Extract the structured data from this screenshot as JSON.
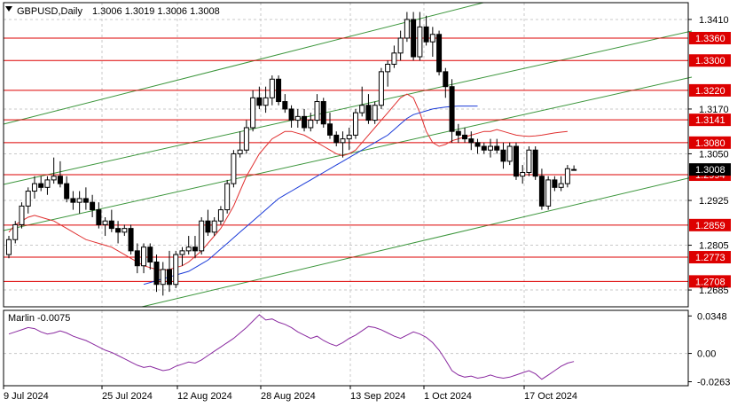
{
  "header": {
    "symbol_timeframe": "GBPUSD,Daily",
    "ohlc": "1.3006 1.3019 1.3006 1.3008"
  },
  "subwindow": {
    "indicator_label": "Marlin -0.0075"
  },
  "colors": {
    "background": "#ffffff",
    "grid": "#c8c8c8",
    "level_line": "#dd0000",
    "level_tag": "#dd0000",
    "channel": "#3c963c",
    "ma_fast": "#e03030",
    "ma_slow": "#1a3ad8",
    "marlin": "#8a2aa0",
    "candle_body_down": "#000000",
    "candle_body_up": "#ffffff",
    "current_price_tag": "#000000"
  },
  "chart_data": {
    "type": "candlestick",
    "price_axis": {
      "min": 1.264,
      "max": 1.3455,
      "tick_labels": [
        "1.3410",
        "1.3170",
        "1.3050",
        "1.2925",
        "1.2805",
        "1.2685"
      ]
    },
    "x_tick_labels": [
      "9 Jul 2024",
      "25 Jul 2024",
      "12 Aug 2024",
      "28 Aug 2024",
      "13 Sep 2024",
      "1 Oct 2024",
      "17 Oct 2024"
    ],
    "horizontal_levels": [
      "1.3360",
      "1.3300",
      "1.3220",
      "1.3141",
      "1.3080",
      "1.2994",
      "1.2859",
      "1.2773",
      "1.2708"
    ],
    "current_price": "1.3008",
    "candles": [
      [
        1.278,
        1.283,
        1.277,
        1.282
      ],
      [
        1.282,
        1.287,
        1.281,
        1.286
      ],
      [
        1.286,
        1.292,
        1.285,
        1.291
      ],
      [
        1.291,
        1.296,
        1.289,
        1.295
      ],
      [
        1.295,
        1.299,
        1.293,
        1.297
      ],
      [
        1.297,
        1.299,
        1.295,
        1.296
      ],
      [
        1.296,
        1.299,
        1.294,
        1.298
      ],
      [
        1.298,
        1.304,
        1.297,
        1.299
      ],
      [
        1.299,
        1.303,
        1.296,
        1.297
      ],
      [
        1.297,
        1.299,
        1.292,
        1.293
      ],
      [
        1.293,
        1.295,
        1.29,
        1.292
      ],
      [
        1.292,
        1.295,
        1.289,
        1.293
      ],
      [
        1.293,
        1.296,
        1.29,
        1.292
      ],
      [
        1.292,
        1.294,
        1.288,
        1.29
      ],
      [
        1.29,
        1.292,
        1.285,
        1.286
      ],
      [
        1.286,
        1.288,
        1.283,
        1.287
      ],
      [
        1.287,
        1.29,
        1.284,
        1.285
      ],
      [
        1.285,
        1.287,
        1.281,
        1.284
      ],
      [
        1.284,
        1.286,
        1.283,
        1.285
      ],
      [
        1.285,
        1.286,
        1.278,
        1.279
      ],
      [
        1.279,
        1.281,
        1.273,
        1.275
      ],
      [
        1.275,
        1.281,
        1.273,
        1.28
      ],
      [
        1.28,
        1.281,
        1.274,
        1.276
      ],
      [
        1.276,
        1.278,
        1.268,
        1.27
      ],
      [
        1.27,
        1.276,
        1.267,
        1.274
      ],
      [
        1.274,
        1.279,
        1.268,
        1.27
      ],
      [
        1.27,
        1.279,
        1.269,
        1.278
      ],
      [
        1.278,
        1.28,
        1.275,
        1.279
      ],
      [
        1.279,
        1.283,
        1.278,
        1.28
      ],
      [
        1.28,
        1.283,
        1.277,
        1.279
      ],
      [
        1.279,
        1.288,
        1.278,
        1.287
      ],
      [
        1.287,
        1.29,
        1.283,
        1.284
      ],
      [
        1.284,
        1.288,
        1.283,
        1.287
      ],
      [
        1.287,
        1.291,
        1.286,
        1.29
      ],
      [
        1.29,
        1.298,
        1.289,
        1.297
      ],
      [
        1.297,
        1.306,
        1.296,
        1.305
      ],
      [
        1.305,
        1.311,
        1.304,
        1.306
      ],
      [
        1.306,
        1.314,
        1.305,
        1.312
      ],
      [
        1.312,
        1.322,
        1.311,
        1.32
      ],
      [
        1.32,
        1.323,
        1.317,
        1.318
      ],
      [
        1.318,
        1.323,
        1.316,
        1.32
      ],
      [
        1.32,
        1.326,
        1.318,
        1.325
      ],
      [
        1.325,
        1.326,
        1.318,
        1.319
      ],
      [
        1.319,
        1.321,
        1.316,
        1.317
      ],
      [
        1.317,
        1.318,
        1.312,
        1.314
      ],
      [
        1.314,
        1.317,
        1.312,
        1.315
      ],
      [
        1.315,
        1.317,
        1.311,
        1.312
      ],
      [
        1.312,
        1.316,
        1.311,
        1.314
      ],
      [
        1.314,
        1.321,
        1.313,
        1.319
      ],
      [
        1.319,
        1.32,
        1.312,
        1.313
      ],
      [
        1.313,
        1.316,
        1.309,
        1.31
      ],
      [
        1.31,
        1.311,
        1.307,
        1.308
      ],
      [
        1.308,
        1.311,
        1.304,
        1.309
      ],
      [
        1.309,
        1.312,
        1.306,
        1.31
      ],
      [
        1.31,
        1.317,
        1.309,
        1.316
      ],
      [
        1.316,
        1.323,
        1.315,
        1.318
      ],
      [
        1.318,
        1.321,
        1.313,
        1.314
      ],
      [
        1.314,
        1.319,
        1.313,
        1.318
      ],
      [
        1.318,
        1.328,
        1.317,
        1.327
      ],
      [
        1.327,
        1.33,
        1.323,
        1.329
      ],
      [
        1.329,
        1.334,
        1.328,
        1.332
      ],
      [
        1.332,
        1.338,
        1.33,
        1.336
      ],
      [
        1.336,
        1.343,
        1.335,
        1.341
      ],
      [
        1.341,
        1.343,
        1.33,
        1.331
      ],
      [
        1.331,
        1.343,
        1.33,
        1.339
      ],
      [
        1.339,
        1.342,
        1.334,
        1.335
      ],
      [
        1.335,
        1.339,
        1.331,
        1.337
      ],
      [
        1.337,
        1.338,
        1.326,
        1.327
      ],
      [
        1.327,
        1.328,
        1.32,
        1.323
      ],
      [
        1.323,
        1.325,
        1.308,
        1.311
      ],
      [
        1.311,
        1.313,
        1.308,
        1.31
      ],
      [
        1.31,
        1.312,
        1.308,
        1.309
      ],
      [
        1.309,
        1.311,
        1.306,
        1.308
      ],
      [
        1.308,
        1.309,
        1.305,
        1.307
      ],
      [
        1.307,
        1.308,
        1.305,
        1.306
      ],
      [
        1.306,
        1.309,
        1.304,
        1.307
      ],
      [
        1.307,
        1.309,
        1.305,
        1.306
      ],
      [
        1.306,
        1.308,
        1.301,
        1.303
      ],
      [
        1.303,
        1.308,
        1.302,
        1.307
      ],
      [
        1.307,
        1.308,
        1.298,
        1.299
      ],
      [
        1.299,
        1.302,
        1.297,
        1.3
      ],
      [
        1.3,
        1.307,
        1.299,
        1.306
      ],
      [
        1.306,
        1.307,
        1.298,
        1.299
      ],
      [
        1.299,
        1.301,
        1.29,
        1.291
      ],
      [
        1.291,
        1.299,
        1.29,
        1.298
      ],
      [
        1.298,
        1.299,
        1.295,
        1.296
      ],
      [
        1.296,
        1.299,
        1.295,
        1.297
      ],
      [
        1.297,
        1.302,
        1.296,
        1.301
      ],
      [
        1.3006,
        1.3019,
        1.3006,
        1.3008
      ]
    ],
    "ma_fast": [
      1.284,
      1.286,
      1.287,
      1.288,
      1.2885,
      1.288,
      1.2875,
      1.287,
      1.286,
      1.285,
      1.284,
      1.283,
      1.282,
      1.2815,
      1.281,
      1.2805,
      1.28,
      1.279,
      1.278,
      1.277,
      1.276,
      1.275,
      1.2745,
      1.274,
      1.2738,
      1.274,
      1.2745,
      1.275,
      1.276,
      1.2775,
      1.279,
      1.281,
      1.283,
      1.285,
      1.288,
      1.291,
      1.295,
      1.299,
      1.302,
      1.305,
      1.307,
      1.309,
      1.31,
      1.311,
      1.311,
      1.3105,
      1.31,
      1.309,
      1.308,
      1.307,
      1.306,
      1.305,
      1.3045,
      1.305,
      1.306,
      1.308,
      1.31,
      1.312,
      1.314,
      1.316,
      1.318,
      1.32,
      1.321,
      1.32,
      1.316,
      1.311,
      1.308,
      1.307,
      1.3075,
      1.3085,
      1.309,
      1.3095,
      1.31,
      1.3105,
      1.311,
      1.311,
      1.3115,
      1.311,
      1.3105,
      1.31,
      1.3098,
      1.3097,
      1.3098,
      1.31,
      1.3103,
      1.3106,
      1.3108,
      1.311
    ],
    "ma_slow": [
      null,
      null,
      null,
      null,
      null,
      null,
      null,
      null,
      null,
      null,
      null,
      null,
      null,
      null,
      null,
      null,
      null,
      null,
      null,
      null,
      null,
      1.27,
      1.2705,
      1.271,
      1.2715,
      1.272,
      1.2725,
      1.273,
      1.2735,
      1.2745,
      1.2755,
      1.2765,
      1.278,
      1.2795,
      1.281,
      1.2825,
      1.284,
      1.2855,
      1.287,
      1.2885,
      1.29,
      1.2915,
      1.293,
      1.294,
      1.295,
      1.296,
      1.297,
      1.298,
      1.299,
      1.3,
      1.301,
      1.302,
      1.303,
      1.304,
      1.305,
      1.306,
      1.307,
      1.308,
      1.309,
      1.31,
      1.3115,
      1.313,
      1.3145,
      1.3155,
      1.316,
      1.3165,
      1.317,
      1.3173,
      1.3175,
      1.3177,
      1.3178,
      1.3178,
      1.3178,
      1.3178
    ],
    "marlin": [
      0.018,
      0.02,
      0.022,
      0.024,
      0.023,
      0.02,
      0.018,
      0.019,
      0.021,
      0.019,
      0.016,
      0.014,
      0.012,
      0.009,
      0.006,
      0.003,
      0.001,
      -0.002,
      -0.005,
      -0.008,
      -0.011,
      -0.013,
      -0.012,
      -0.014,
      -0.016,
      -0.015,
      -0.012,
      -0.01,
      -0.008,
      -0.009,
      -0.006,
      -0.002,
      0.002,
      0.006,
      0.01,
      0.014,
      0.019,
      0.024,
      0.03,
      0.036,
      0.031,
      0.032,
      0.029,
      0.027,
      0.024,
      0.02,
      0.017,
      0.014,
      0.016,
      0.012,
      0.009,
      0.007,
      0.01,
      0.014,
      0.017,
      0.021,
      0.025,
      0.024,
      0.022,
      0.019,
      0.016,
      0.014,
      0.017,
      0.02,
      0.018,
      0.015,
      0.01,
      0.003,
      -0.006,
      -0.016,
      -0.02,
      -0.022,
      -0.021,
      -0.023,
      -0.022,
      -0.02,
      -0.022,
      -0.023,
      -0.022,
      -0.02,
      -0.018,
      -0.016,
      -0.019,
      -0.024,
      -0.02,
      -0.016,
      -0.012,
      -0.009,
      -0.0075
    ],
    "marlin_axis": {
      "min": -0.03,
      "max": 0.04,
      "tick_labels": [
        "0.0348",
        "0.00",
        "-0.0263"
      ]
    }
  }
}
